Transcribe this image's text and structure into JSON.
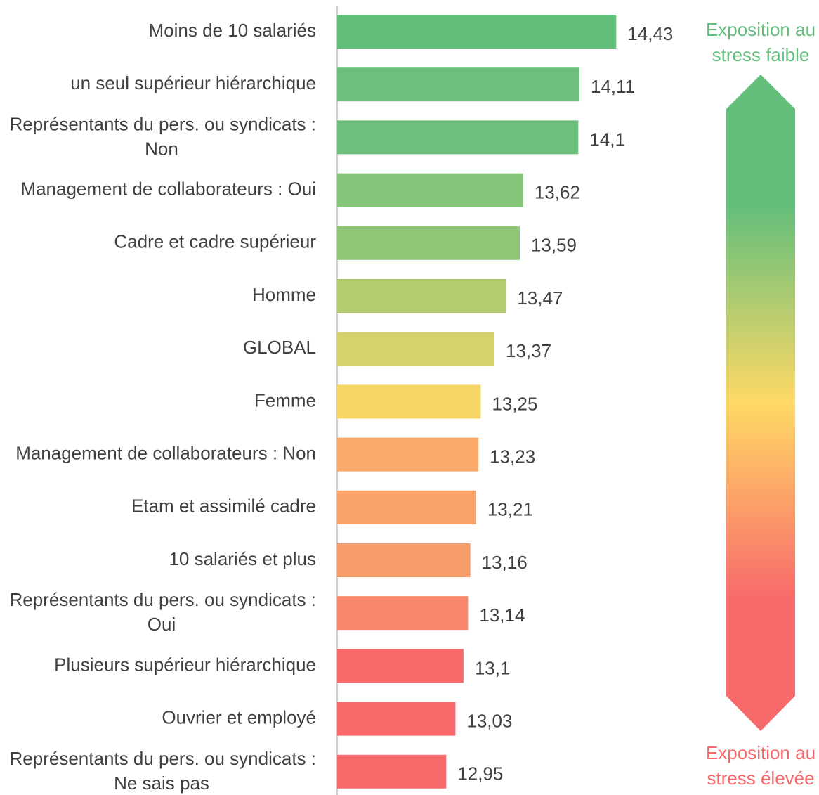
{
  "chart_data": {
    "type": "barh",
    "categories": [
      "Moins de 10 salariés",
      "un seul supérieur hiérarchique",
      "Représentants du pers. ou syndicats : Non",
      "Management de collaborateurs : Oui",
      "Cadre et cadre supérieur",
      "Homme",
      "GLOBAL",
      "Femme",
      "Management de collaborateurs : Non",
      "Etam et assimilé cadre",
      "10 salariés et plus",
      "Représentants du pers. ou syndicats : Oui",
      "Plusieurs supérieur hiérarchique",
      "Ouvrier et employé",
      "Représentants du pers. ou syndicats : Ne sais pas"
    ],
    "values": [
      14.43,
      14.11,
      14.1,
      13.62,
      13.59,
      13.47,
      13.37,
      13.25,
      13.23,
      13.21,
      13.16,
      13.14,
      13.1,
      13.03,
      12.95
    ],
    "value_labels": [
      "14,43",
      "14,11",
      "14,1",
      "13,62",
      "13,59",
      "13,47",
      "13,37",
      "13,25",
      "13,23",
      "13,21",
      "13,16",
      "13,14",
      "13,1",
      "13,03",
      "12,95"
    ],
    "colors": [
      "#63be7b",
      "#6cc07b",
      "#6dc17c",
      "#85c57a",
      "#8fc677",
      "#b2cc6e",
      "#d3d26b",
      "#f7d668",
      "#f9a968",
      "#f9a36a",
      "#f99c6b",
      "#f8876b",
      "#f8696b",
      "#f8696b",
      "#f8696b"
    ],
    "xlim": [
      12,
      15
    ],
    "annotations": {
      "top": "Exposition au stress faible",
      "bottom": "Exposition au stress élevée"
    }
  }
}
